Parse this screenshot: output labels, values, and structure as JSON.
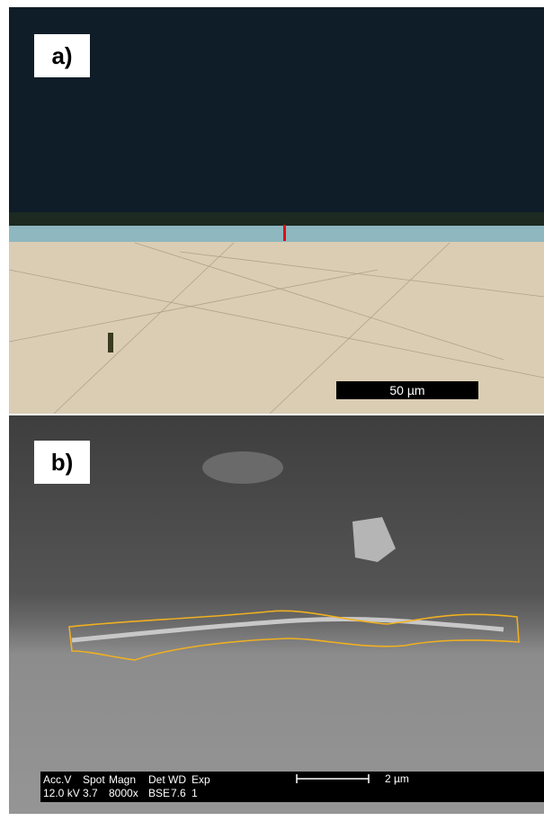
{
  "panels": [
    {
      "label": "a)",
      "scale_bar": "50 µm"
    },
    {
      "label": "b)",
      "scale_bar": "2 µm",
      "info": {
        "headers": [
          "Acc.V",
          "Spot",
          "Magn",
          "Det",
          "WD",
          "Exp"
        ],
        "values": [
          "12.0 kV",
          "3.7",
          "8000x",
          "BSE",
          "7.6",
          "1"
        ]
      }
    }
  ]
}
